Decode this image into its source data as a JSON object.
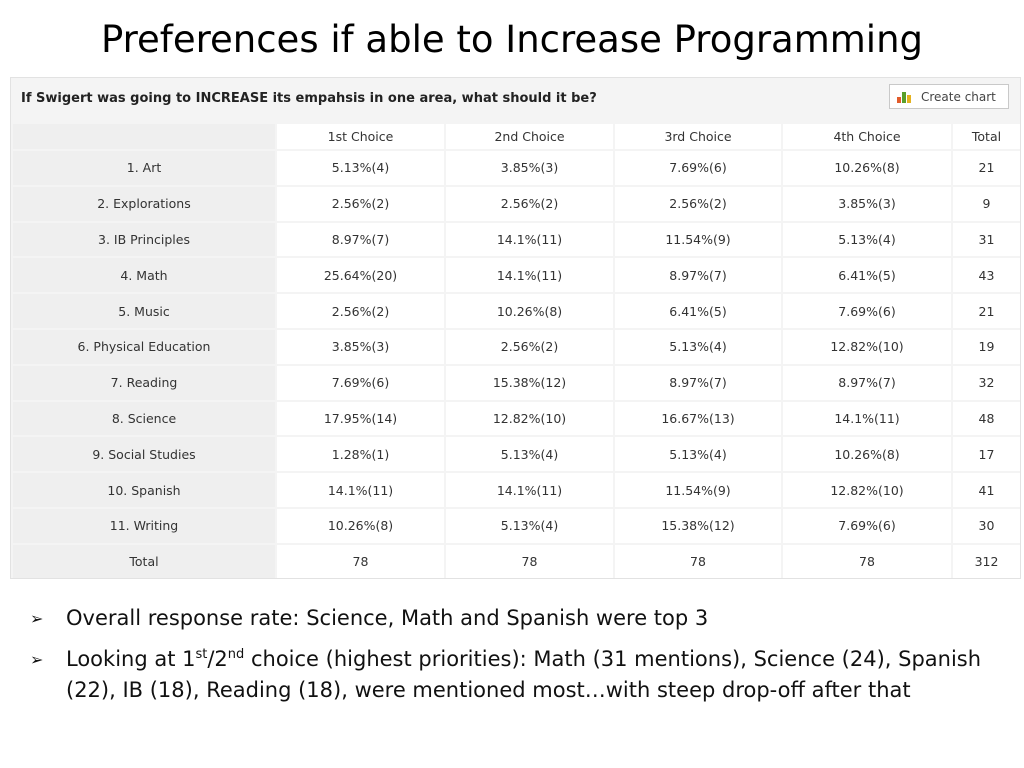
{
  "slide": {
    "title": "Preferences if able to Increase Programming"
  },
  "survey": {
    "question": "If Swigert was going to INCREASE its empahsis in one area, what should it be?",
    "create_chart_label": "Create chart",
    "columns": [
      "1st Choice",
      "2nd Choice",
      "3rd Choice",
      "4th Choice",
      "Total"
    ],
    "rows": [
      {
        "label": "1. Art",
        "cells": [
          "5.13%(4)",
          "3.85%(3)",
          "7.69%(6)",
          "10.26%(8)",
          "21"
        ]
      },
      {
        "label": "2. Explorations",
        "cells": [
          "2.56%(2)",
          "2.56%(2)",
          "2.56%(2)",
          "3.85%(3)",
          "9"
        ]
      },
      {
        "label": "3. IB Principles",
        "cells": [
          "8.97%(7)",
          "14.1%(11)",
          "11.54%(9)",
          "5.13%(4)",
          "31"
        ]
      },
      {
        "label": "4. Math",
        "cells": [
          "25.64%(20)",
          "14.1%(11)",
          "8.97%(7)",
          "6.41%(5)",
          "43"
        ]
      },
      {
        "label": "5. Music",
        "cells": [
          "2.56%(2)",
          "10.26%(8)",
          "6.41%(5)",
          "7.69%(6)",
          "21"
        ]
      },
      {
        "label": "6. Physical Education",
        "cells": [
          "3.85%(3)",
          "2.56%(2)",
          "5.13%(4)",
          "12.82%(10)",
          "19"
        ]
      },
      {
        "label": "7. Reading",
        "cells": [
          "7.69%(6)",
          "15.38%(12)",
          "8.97%(7)",
          "8.97%(7)",
          "32"
        ]
      },
      {
        "label": "8. Science",
        "cells": [
          "17.95%(14)",
          "12.82%(10)",
          "16.67%(13)",
          "14.1%(11)",
          "48"
        ]
      },
      {
        "label": "9. Social Studies",
        "cells": [
          "1.28%(1)",
          "5.13%(4)",
          "5.13%(4)",
          "10.26%(8)",
          "17"
        ]
      },
      {
        "label": "10. Spanish",
        "cells": [
          "14.1%(11)",
          "14.1%(11)",
          "11.54%(9)",
          "12.82%(10)",
          "41"
        ]
      },
      {
        "label": "11. Writing",
        "cells": [
          "10.26%(8)",
          "5.13%(4)",
          "15.38%(12)",
          "7.69%(6)",
          "30"
        ]
      },
      {
        "label": "Total",
        "cells": [
          "78",
          "78",
          "78",
          "78",
          "312"
        ]
      }
    ]
  },
  "notes": [
    {
      "parts": [
        "Overall response rate:  Science, Math and Spanish were top 3"
      ]
    },
    {
      "parts": [
        "Looking at 1",
        "st",
        "/2",
        "nd",
        " choice (highest priorities):  Math (31 mentions), Science (24), Spanish (22), IB (18), Reading (18), were mentioned most…with steep drop-off after that"
      ]
    }
  ],
  "icons": {
    "bullet": "arrow-bullet-icon",
    "chart": "bar-chart-icon"
  },
  "colors": {
    "panel_bg": "#f4f4f4",
    "label_cell_bg": "#efefef",
    "cell_bg": "#ffffff"
  }
}
